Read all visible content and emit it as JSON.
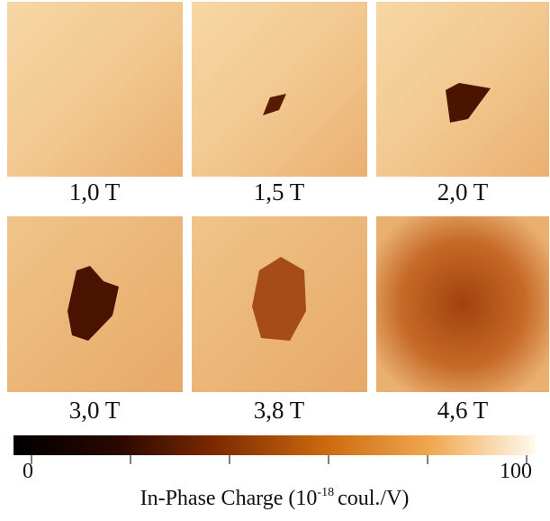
{
  "panels": [
    {
      "label": "1,0 T"
    },
    {
      "label": "1,5 T"
    },
    {
      "label": "2,0 T"
    },
    {
      "label": "3,0 T"
    },
    {
      "label": "3,8 T"
    },
    {
      "label": "4,6 T"
    }
  ],
  "colorbar": {
    "range": [
      0,
      100
    ],
    "minor_ticks": [
      20,
      40,
      60,
      80
    ],
    "label_parts": [
      "In-Phase Charge (10",
      "-18",
      "coul./V)"
    ]
  }
}
